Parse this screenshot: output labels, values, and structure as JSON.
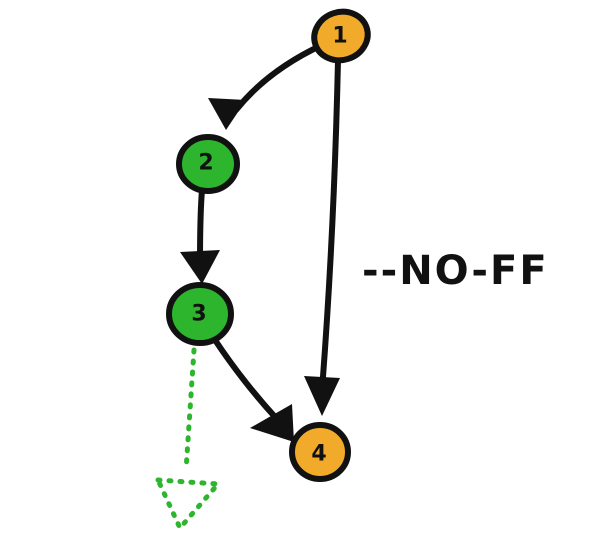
{
  "diagram": {
    "nodes": [
      {
        "id": "1",
        "label": "1",
        "kind": "merge-commit-line",
        "color": "#F2AA2A"
      },
      {
        "id": "2",
        "label": "2",
        "kind": "branch-commit",
        "color": "#2DB52D"
      },
      {
        "id": "3",
        "label": "3",
        "kind": "branch-commit",
        "color": "#2DB52D"
      },
      {
        "id": "4",
        "label": "4",
        "kind": "merge-commit",
        "color": "#F2AA2A"
      }
    ],
    "edges": [
      {
        "from": "1",
        "to": "2",
        "style": "solid"
      },
      {
        "from": "2",
        "to": "3",
        "style": "solid"
      },
      {
        "from": "3",
        "to": "4",
        "style": "solid"
      },
      {
        "from": "1",
        "to": "4",
        "style": "solid"
      },
      {
        "from": "3",
        "to": "",
        "style": "dotted"
      }
    ],
    "annotation": "--NO-FF",
    "colors": {
      "orange": "#F2AA2A",
      "green": "#2DB52D",
      "stroke": "#111111",
      "dotted_arrow": "#2DB52D"
    }
  }
}
